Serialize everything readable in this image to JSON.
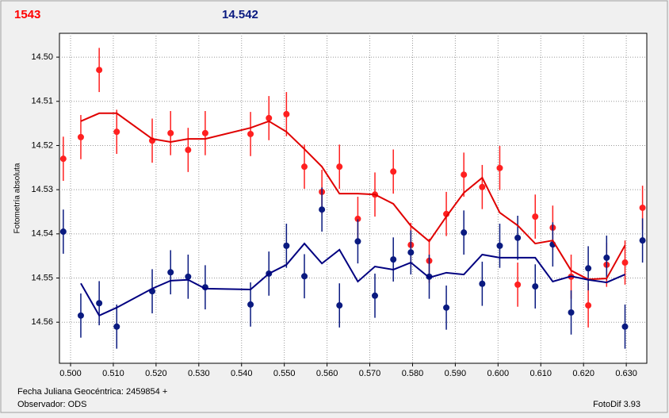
{
  "chart_data": {
    "type": "scatter",
    "title_left": "1543",
    "title_right": "14.542",
    "title_left_color": "#ff0000",
    "title_right_color": "#0a1a80",
    "y_label": "Fotometría absoluta",
    "x_label": "Fecha Juliana Geocéntrica: 2459854 +",
    "observer": "Observador: ODS",
    "software": "FotoDif 3.93",
    "xlim": [
      0.4974,
      0.6348
    ],
    "ylim": [
      14.5693,
      14.4946
    ],
    "grid": true,
    "xticks": [
      {
        "value": 0.5,
        "label": "0.500"
      },
      {
        "value": 0.51,
        "label": "0.510"
      },
      {
        "value": 0.52,
        "label": "0.520"
      },
      {
        "value": 0.53,
        "label": "0.530"
      },
      {
        "value": 0.54,
        "label": "0.540"
      },
      {
        "value": 0.55,
        "label": "0.550"
      },
      {
        "value": 0.56,
        "label": "0.560"
      },
      {
        "value": 0.57,
        "label": "0.570"
      },
      {
        "value": 0.58,
        "label": "0.580"
      },
      {
        "value": 0.59,
        "label": "0.590"
      },
      {
        "value": 0.6,
        "label": "0.600"
      },
      {
        "value": 0.61,
        "label": "0.610"
      },
      {
        "value": 0.62,
        "label": "0.620"
      },
      {
        "value": 0.63,
        "label": "0.630"
      }
    ],
    "yticks": [
      {
        "value": 14.5,
        "label": "14.50"
      },
      14.51,
      14.52,
      14.53,
      14.54,
      14.55,
      14.56
    ],
    "series": [
      {
        "type": "points",
        "color": "#ff2020",
        "x": [
          0.4983,
          0.5024,
          0.5067,
          0.5108,
          0.5191,
          0.5234,
          0.5275,
          0.5315,
          0.5421,
          0.5464,
          0.5505,
          0.5547,
          0.5588,
          0.5629,
          0.5672,
          0.5712,
          0.5755,
          0.5796,
          0.5839,
          0.5879,
          0.592,
          0.5963,
          0.6004,
          0.6046,
          0.6087,
          0.6128,
          0.6171,
          0.6211,
          0.6254,
          0.6297,
          0.6338
        ],
        "values": [
          14.523,
          14.5181,
          14.5029,
          14.5169,
          14.5189,
          14.5172,
          14.521,
          14.5172,
          14.5174,
          14.5138,
          14.5129,
          14.5248,
          14.5305,
          14.5248,
          14.5366,
          14.5311,
          14.5259,
          14.5425,
          14.5461,
          14.5355,
          14.5266,
          14.5294,
          14.5251,
          14.5515,
          14.5361,
          14.5386,
          14.5497,
          14.5562,
          14.547,
          14.5465,
          14.5341
        ],
        "errors": [
          0.005,
          0.005,
          0.005,
          0.005,
          0.005,
          0.005,
          0.005,
          0.005,
          0.005,
          0.005,
          0.005,
          0.005,
          0.005,
          0.005,
          0.005,
          0.005,
          0.005,
          0.005,
          0.005,
          0.005,
          0.005,
          0.005,
          0.005,
          0.005,
          0.005,
          0.005,
          0.005,
          0.005,
          0.005,
          0.005,
          0.005
        ]
      },
      {
        "type": "points",
        "color": "#0a1a80",
        "x": [
          0.4983,
          0.5024,
          0.5067,
          0.5108,
          0.5191,
          0.5234,
          0.5275,
          0.5315,
          0.5421,
          0.5464,
          0.5505,
          0.5547,
          0.5588,
          0.5629,
          0.5672,
          0.5712,
          0.5755,
          0.5796,
          0.5839,
          0.5879,
          0.592,
          0.5963,
          0.6004,
          0.6046,
          0.6087,
          0.6128,
          0.6171,
          0.6211,
          0.6254,
          0.6297,
          0.6338
        ],
        "values": [
          14.5395,
          14.5585,
          14.5557,
          14.561,
          14.553,
          14.5487,
          14.5497,
          14.5521,
          14.556,
          14.549,
          14.5427,
          14.5496,
          14.5345,
          14.5562,
          14.5417,
          14.554,
          14.5458,
          14.5442,
          14.5497,
          14.5567,
          14.5397,
          14.5513,
          14.5427,
          14.5409,
          14.5519,
          14.5424,
          14.5578,
          14.5478,
          14.5454,
          14.561,
          14.5415
        ],
        "errors": [
          0.005,
          0.005,
          0.005,
          0.005,
          0.005,
          0.005,
          0.005,
          0.005,
          0.005,
          0.005,
          0.005,
          0.005,
          0.005,
          0.005,
          0.005,
          0.005,
          0.005,
          0.005,
          0.005,
          0.005,
          0.005,
          0.005,
          0.005,
          0.005,
          0.005,
          0.005,
          0.005,
          0.005,
          0.005,
          0.005,
          0.005
        ]
      },
      {
        "type": "line",
        "color": "#e00000",
        "x": [
          0.5024,
          0.5067,
          0.5108,
          0.5191,
          0.5234,
          0.5275,
          0.5315,
          0.5421,
          0.5464,
          0.5505,
          0.5547,
          0.5588,
          0.5629,
          0.5672,
          0.5712,
          0.5755,
          0.5796,
          0.5839,
          0.5879,
          0.592,
          0.5963,
          0.6004,
          0.6046,
          0.6087,
          0.6128,
          0.6171,
          0.6211,
          0.6254,
          0.6297
        ],
        "values": [
          14.5145,
          14.5127,
          14.5127,
          14.5185,
          14.5192,
          14.5185,
          14.5185,
          14.516,
          14.5145,
          14.5169,
          14.5208,
          14.5248,
          14.5309,
          14.5309,
          14.5311,
          14.5332,
          14.5382,
          14.5417,
          14.5361,
          14.5307,
          14.5273,
          14.5352,
          14.5381,
          14.5422,
          14.5415,
          14.5483,
          14.5503,
          14.5501,
          14.5426
        ]
      },
      {
        "type": "line",
        "color": "#000080",
        "x": [
          0.5024,
          0.5067,
          0.5108,
          0.5191,
          0.5234,
          0.5275,
          0.5315,
          0.5421,
          0.5464,
          0.5505,
          0.5547,
          0.5588,
          0.5629,
          0.5672,
          0.5712,
          0.5755,
          0.5796,
          0.5839,
          0.5879,
          0.592,
          0.5963,
          0.6004,
          0.6046,
          0.6087,
          0.6128,
          0.6171,
          0.6211,
          0.6254,
          0.6297
        ],
        "values": [
          14.5512,
          14.5585,
          14.5567,
          14.5524,
          14.5506,
          14.5504,
          14.5524,
          14.5526,
          14.549,
          14.547,
          14.5422,
          14.5467,
          14.5436,
          14.5508,
          14.5474,
          14.5481,
          14.5465,
          14.5499,
          14.5488,
          14.5492,
          14.5447,
          14.5454,
          14.5454,
          14.5454,
          14.5508,
          14.5496,
          14.5504,
          14.551,
          14.5492
        ]
      }
    ]
  }
}
